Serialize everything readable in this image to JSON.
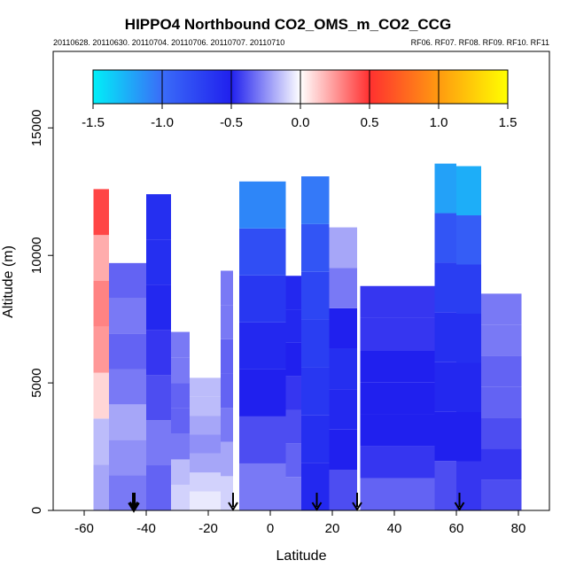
{
  "chart_data": {
    "type": "heatmap",
    "title": "HIPPO4 Northbound CO2_OMS_m_CO2_CCG",
    "subtitle_left": "20110628. 20110630. 20110704. 20110706. 20110707. 20110710",
    "subtitle_right": "RF06. RF07. RF08. RF09. RF10. RF11",
    "xlabel": "Latitude",
    "ylabel": "Altitude (m)",
    "xlim": [
      -70,
      90
    ],
    "ylim": [
      0,
      18000
    ],
    "x_ticks": [
      -60,
      -40,
      -20,
      0,
      20,
      40,
      60,
      80
    ],
    "x_tick_labels": [
      "-60",
      "-40",
      "-20",
      "0",
      "20",
      "40",
      "60",
      "80"
    ],
    "y_ticks": [
      0,
      5000,
      10000,
      15000
    ],
    "y_tick_labels": [
      "0",
      "5000",
      "10000",
      "15000"
    ],
    "colorbar": {
      "range": [
        -1.5,
        1.5
      ],
      "ticks": [
        -1.5,
        -1.0,
        -0.5,
        0.0,
        0.5,
        1.0,
        1.5
      ],
      "tick_labels": [
        "-1.5",
        "-1.0",
        "-0.5",
        "0.0",
        "0.5",
        "1.0",
        "1.5"
      ],
      "colors": [
        "#00f0f8",
        "#3a6cf8",
        "#2020ee",
        "#ffffff",
        "#ff3030",
        "#ff9a10",
        "#ffff00"
      ]
    },
    "profile_arrows_latitude": [
      -44,
      -12,
      15,
      28,
      61
    ],
    "columns": [
      {
        "lat_min": -57,
        "lat_max": -52,
        "alt_min": 0,
        "alt_max": 12600,
        "values": [
          -0.2,
          -0.15,
          0.1,
          0.25,
          0.3,
          0.2,
          0.45
        ]
      },
      {
        "lat_min": -52,
        "lat_max": -40,
        "alt_min": 0,
        "alt_max": 9700,
        "values": [
          -0.3,
          -0.25,
          -0.2,
          -0.3,
          -0.35,
          -0.3,
          -0.35
        ]
      },
      {
        "lat_min": -40,
        "lat_max": -32,
        "alt_min": 0,
        "alt_max": 12400,
        "values": [
          -0.35,
          -0.3,
          -0.4,
          -0.45,
          -0.55,
          -0.6,
          -0.6
        ]
      },
      {
        "lat_min": -32,
        "lat_max": -26,
        "alt_min": 0,
        "alt_max": 7000,
        "values": [
          -0.1,
          -0.15,
          -0.3,
          -0.35,
          -0.35,
          -0.3,
          -0.3
        ]
      },
      {
        "lat_min": -26,
        "lat_max": -16,
        "alt_min": 0,
        "alt_max": 5200,
        "values": [
          -0.05,
          -0.1,
          -0.2,
          -0.25,
          -0.2,
          -0.15,
          -0.15
        ]
      },
      {
        "lat_min": -16,
        "lat_max": -12,
        "alt_min": 0,
        "alt_max": 9400,
        "values": [
          -0.1,
          -0.2,
          -0.3,
          -0.35,
          -0.35,
          -0.3,
          -0.3
        ]
      },
      {
        "lat_min": -10,
        "lat_max": 5,
        "alt_min": 0,
        "alt_max": 12900,
        "values": [
          -0.3,
          -0.4,
          -0.5,
          -0.55,
          -0.65,
          -0.8,
          -1.1
        ]
      },
      {
        "lat_min": 5,
        "lat_max": 10,
        "alt_min": 0,
        "alt_max": 9200,
        "values": [
          -0.3,
          -0.35,
          -0.4,
          -0.45,
          -0.5,
          -0.55,
          -0.55
        ]
      },
      {
        "lat_min": 10,
        "lat_max": 19,
        "alt_min": 0,
        "alt_max": 13100,
        "values": [
          -0.55,
          -0.6,
          -0.65,
          -0.7,
          -0.75,
          -0.85,
          -1.05
        ]
      },
      {
        "lat_min": 19,
        "lat_max": 28,
        "alt_min": 0,
        "alt_max": 11100,
        "values": [
          -0.4,
          -0.5,
          -0.55,
          -0.6,
          -0.5,
          -0.3,
          -0.2
        ]
      },
      {
        "lat_min": 29,
        "lat_max": 53,
        "alt_min": 0,
        "alt_max": 8800,
        "values": [
          -0.35,
          -0.45,
          -0.5,
          -0.5,
          -0.5,
          -0.45,
          -0.45
        ]
      },
      {
        "lat_min": 53,
        "lat_max": 60,
        "alt_min": 0,
        "alt_max": 13600,
        "values": [
          -0.4,
          -0.5,
          -0.55,
          -0.6,
          -0.7,
          -0.85,
          -1.2
        ]
      },
      {
        "lat_min": 60,
        "lat_max": 68,
        "alt_min": 0,
        "alt_max": 13500,
        "values": [
          -0.45,
          -0.5,
          -0.55,
          -0.6,
          -0.7,
          -0.9,
          -1.25
        ]
      },
      {
        "lat_min": 68,
        "lat_max": 81,
        "alt_min": 0,
        "alt_max": 8500,
        "values": [
          -0.4,
          -0.45,
          -0.4,
          -0.35,
          -0.35,
          -0.3,
          -0.3
        ]
      }
    ],
    "grid": false,
    "legend": "colorbar-top"
  }
}
